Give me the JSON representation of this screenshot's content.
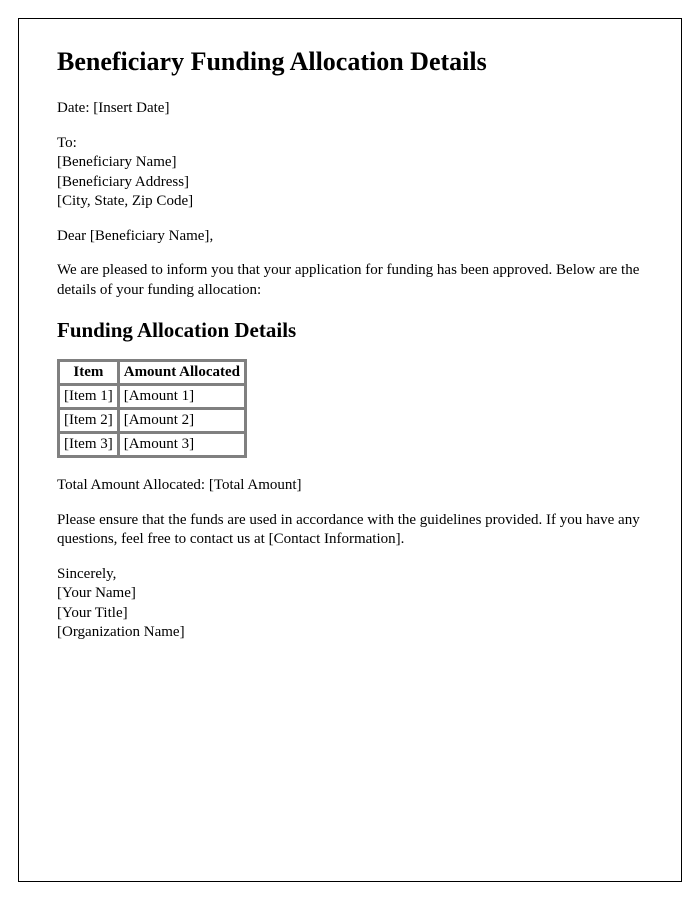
{
  "title": "Beneficiary Funding Allocation Details",
  "date_label": "Date: ",
  "date_value": "[Insert Date]",
  "to_label": "To:",
  "beneficiary_name": "[Beneficiary Name]",
  "beneficiary_address": "[Beneficiary Address]",
  "beneficiary_csz": "[City, State, Zip Code]",
  "salutation_prefix": "Dear ",
  "salutation_name": "[Beneficiary Name]",
  "salutation_suffix": ",",
  "intro_paragraph": "We are pleased to inform you that your application for funding has been approved. Below are the details of your funding allocation:",
  "section_heading": "Funding Allocation Details",
  "table": {
    "col1_header": "Item",
    "col2_header": "Amount Allocated",
    "rows": [
      {
        "item": "[Item 1]",
        "amount": "[Amount 1]"
      },
      {
        "item": "[Item 2]",
        "amount": "[Amount 2]"
      },
      {
        "item": "[Item 3]",
        "amount": "[Amount 3]"
      }
    ]
  },
  "total_label": "Total Amount Allocated: ",
  "total_value": "[Total Amount]",
  "guidelines_paragraph_prefix": "Please ensure that the funds are used in accordance with the guidelines provided. If you have any questions, feel free to contact us at ",
  "contact_info": "[Contact Information]",
  "guidelines_paragraph_suffix": ".",
  "closing": "Sincerely,",
  "signer_name": "[Your Name]",
  "signer_title": "[Your Title]",
  "organization": "[Organization Name]"
}
